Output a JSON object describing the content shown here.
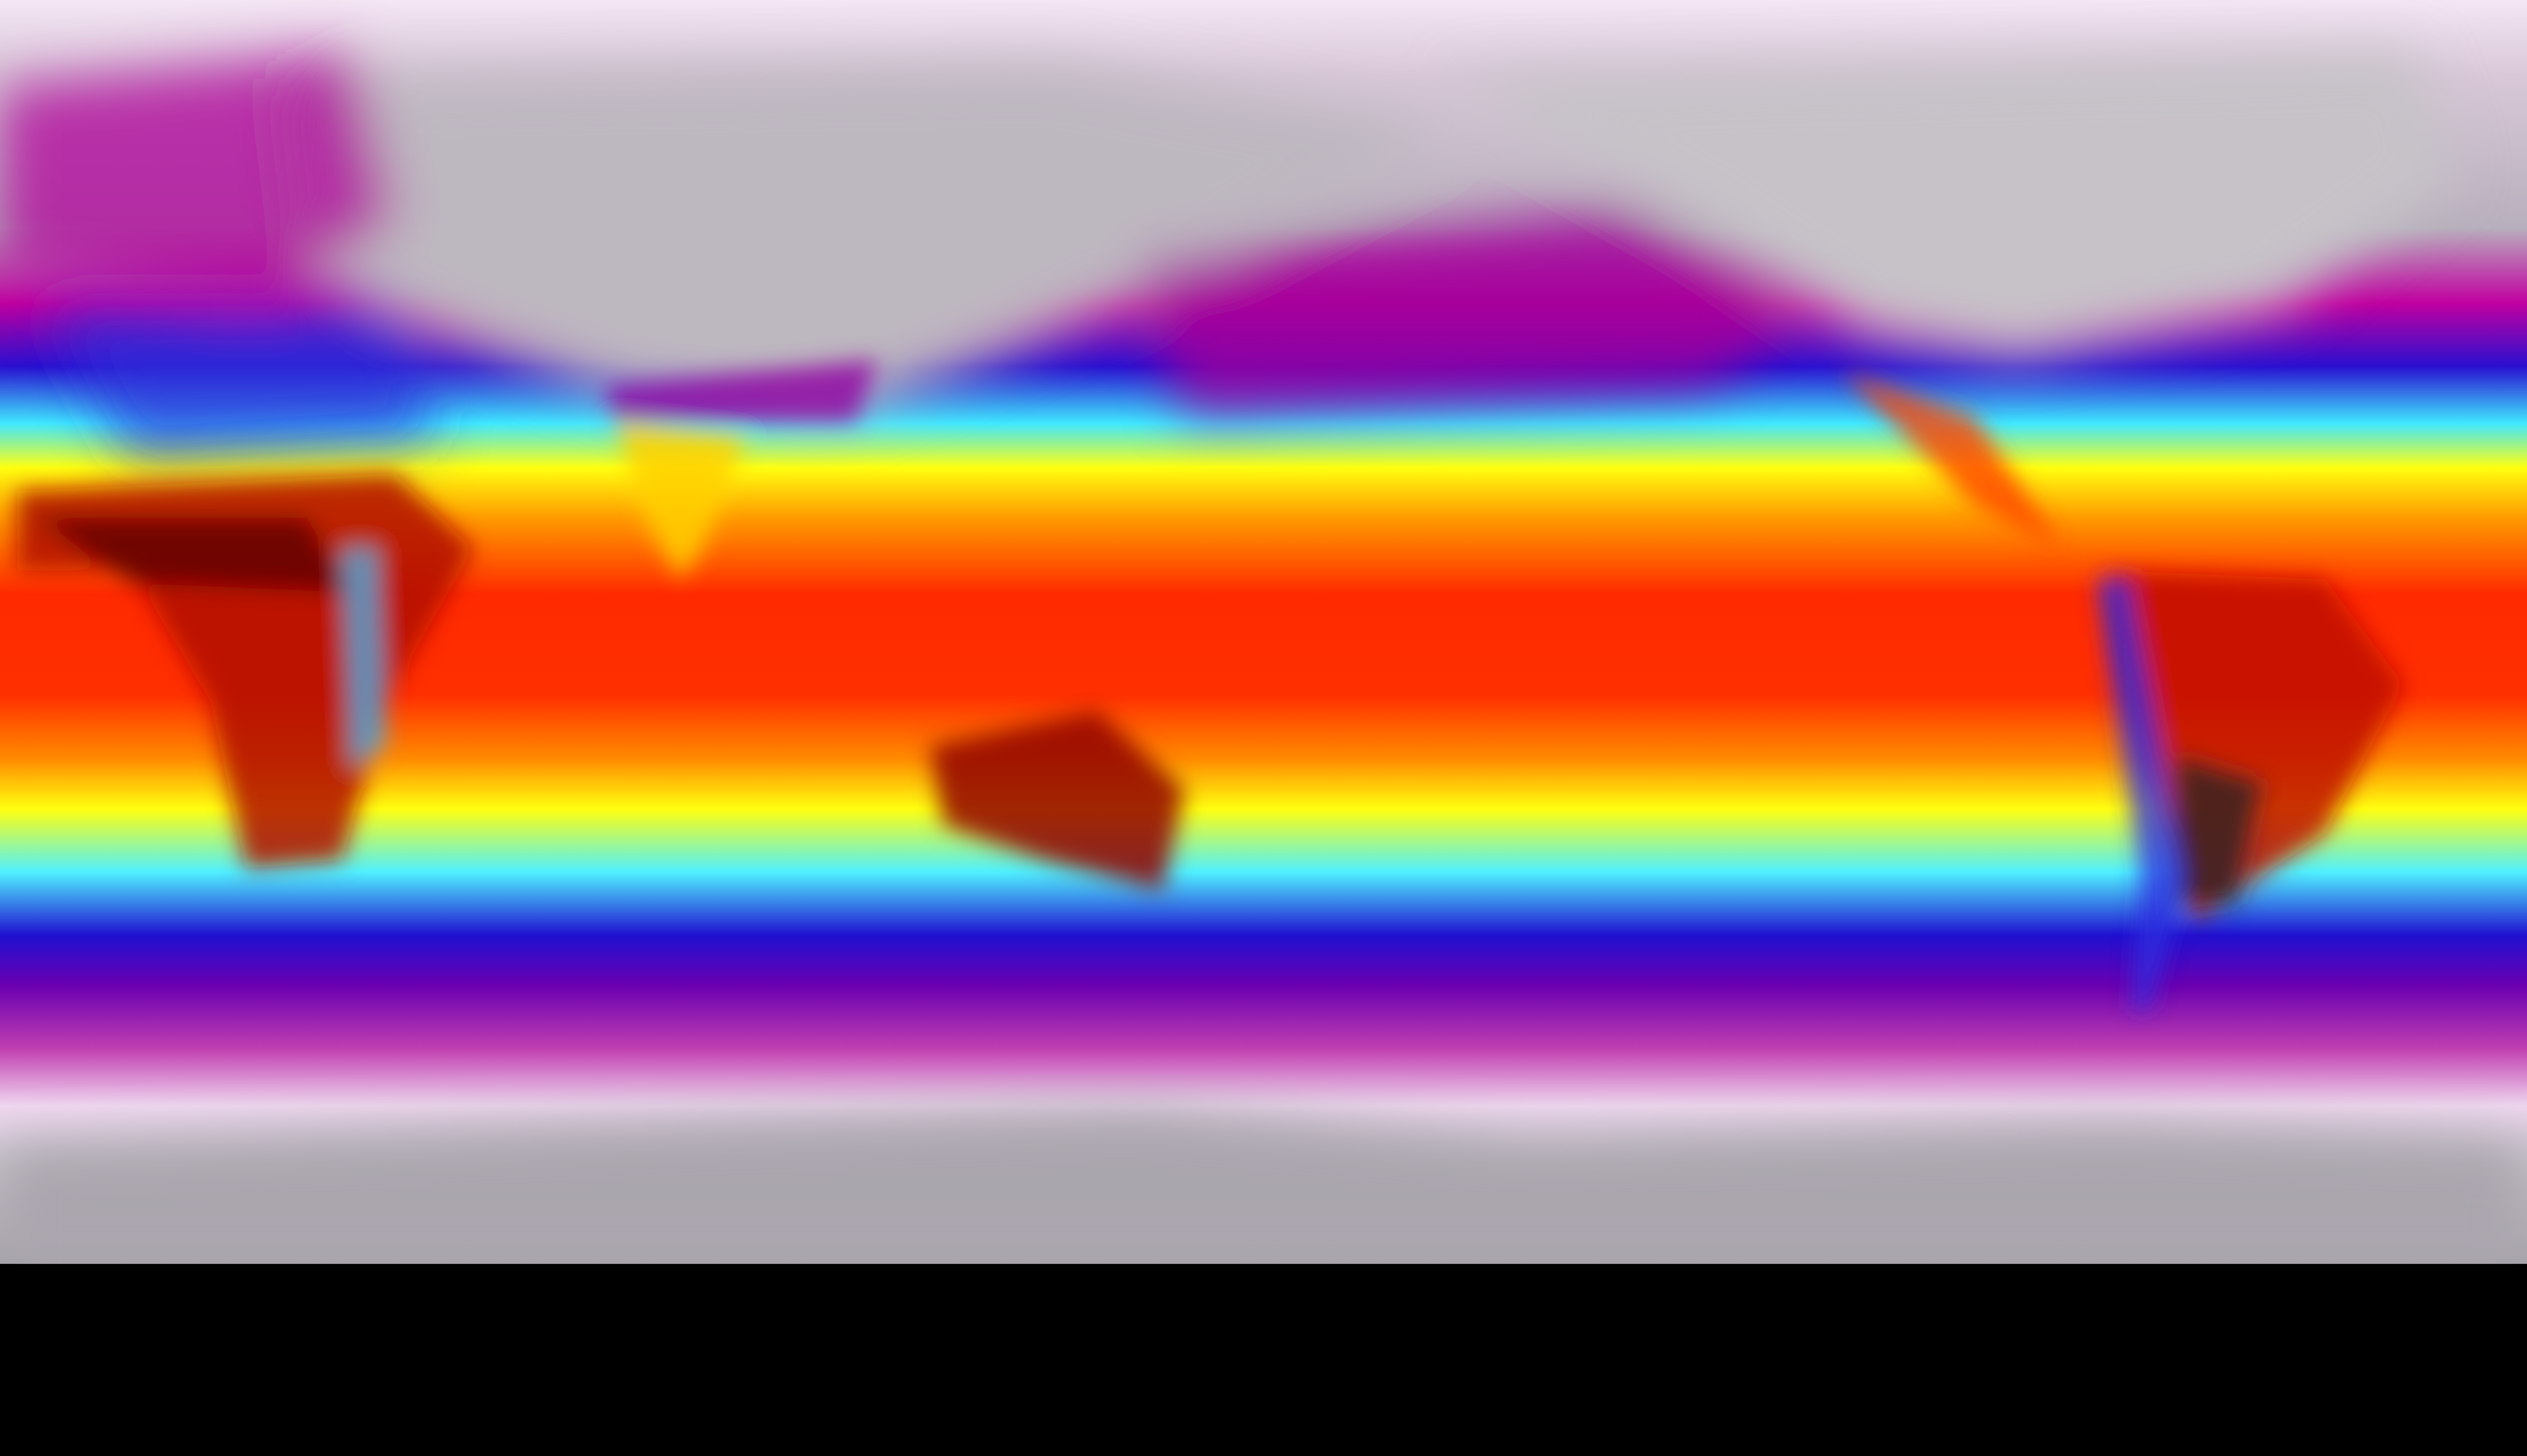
{
  "map": {
    "projection": "equirectangular",
    "field": "temperature",
    "colormap": [
      "#f2e4f2",
      "#b9b2be",
      "#c0008f",
      "#2000d0",
      "#3ff6ff",
      "#ffff00",
      "#ff9a00",
      "#ff1a00",
      "#5a0000"
    ],
    "colors": {
      "polar_pink": "#f2e4f2",
      "ice_grey": "#b9b4bd",
      "magenta": "#b0008a",
      "deep_blue": "#1f10c8",
      "cyan": "#40f0ff",
      "yellow": "#ffff10",
      "orange": "#ff9a00",
      "red": "#ff2a00",
      "hot_dark_red": "#5a0000"
    }
  }
}
